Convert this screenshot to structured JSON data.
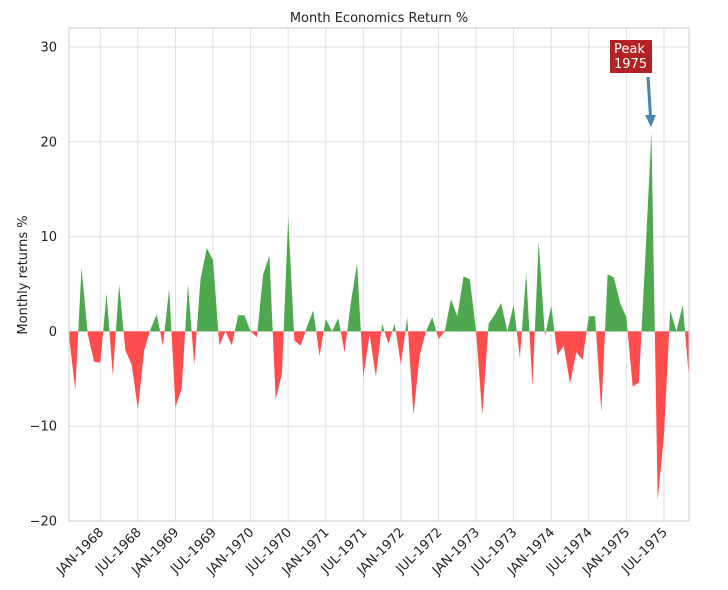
{
  "chart_data": {
    "type": "area",
    "title": "Month Economics Return %",
    "xlabel": "",
    "ylabel": "Monthly returns %",
    "ylim": [
      -20,
      32
    ],
    "yticks": [
      -20,
      -10,
      0,
      10,
      20,
      30
    ],
    "ytick_labels": [
      "−20",
      "−10",
      "0",
      "10",
      "20",
      "30"
    ],
    "x_start": "1967-08",
    "xticks": [
      {
        "month": 5,
        "label": "JAN-1968"
      },
      {
        "month": 11,
        "label": "JUL-1968"
      },
      {
        "month": 17,
        "label": "JAN-1969"
      },
      {
        "month": 23,
        "label": "JUL-1969"
      },
      {
        "month": 29,
        "label": "JAN-1970"
      },
      {
        "month": 35,
        "label": "JUL-1970"
      },
      {
        "month": 41,
        "label": "JAN-1971"
      },
      {
        "month": 47,
        "label": "JUL-1971"
      },
      {
        "month": 53,
        "label": "JAN-1972"
      },
      {
        "month": 59,
        "label": "JUL-1972"
      },
      {
        "month": 65,
        "label": "JAN-1973"
      },
      {
        "month": 71,
        "label": "JUL-1973"
      },
      {
        "month": 77,
        "label": "JAN-1974"
      },
      {
        "month": 83,
        "label": "JUL-1974"
      },
      {
        "month": 89,
        "label": "JAN-1975"
      },
      {
        "month": 95,
        "label": "JUL-1975"
      }
    ],
    "grid": true,
    "colors": {
      "positive": "#4ea84e",
      "negative": "#ff4d4d",
      "annotation_box": "#b22222",
      "arrow": "#4682b4",
      "grid": "#e0e0e0",
      "spine": "#cccccc"
    },
    "annotation": {
      "text_line1": "Peak",
      "text_line2": "1975",
      "x": 92.5,
      "y": 21
    },
    "values": [
      -0.5,
      -6.2,
      6.7,
      -0.3,
      -3.2,
      -3.3,
      4.0,
      -4.7,
      5.0,
      -2.0,
      -3.5,
      -8.2,
      -2.0,
      0.2,
      1.8,
      -1.5,
      4.5,
      -8.0,
      -6.0,
      5.0,
      -3.5,
      5.5,
      8.8,
      7.5,
      -1.5,
      0.0,
      -1.5,
      1.7,
      1.7,
      0.0,
      -0.6,
      6.0,
      8.0,
      -7.2,
      -4.5,
      12.0,
      -1.0,
      -1.5,
      0.5,
      2.2,
      -2.6,
      1.3,
      0.0,
      1.4,
      -2.2,
      3.0,
      7.2,
      -4.8,
      -0.3,
      -4.8,
      0.8,
      -1.3,
      0.8,
      -3.5,
      1.5,
      -8.8,
      -2.5,
      0.0,
      1.5,
      -0.8,
      0.0,
      3.4,
      1.6,
      5.8,
      5.5,
      0.0,
      -8.8,
      0.8,
      1.8,
      3.0,
      0.0,
      2.8,
      -2.8,
      6.2,
      -5.8,
      9.5,
      -0.5,
      2.7,
      -2.5,
      -1.5,
      -5.5,
      -2.2,
      -3.0,
      1.6,
      1.6,
      -8.5,
      6.0,
      5.7,
      3.0,
      1.5,
      -5.8,
      -5.4,
      7.5,
      21.0,
      -17.8,
      -11.0,
      2.2,
      0.0,
      2.8,
      -5.0
    ]
  }
}
